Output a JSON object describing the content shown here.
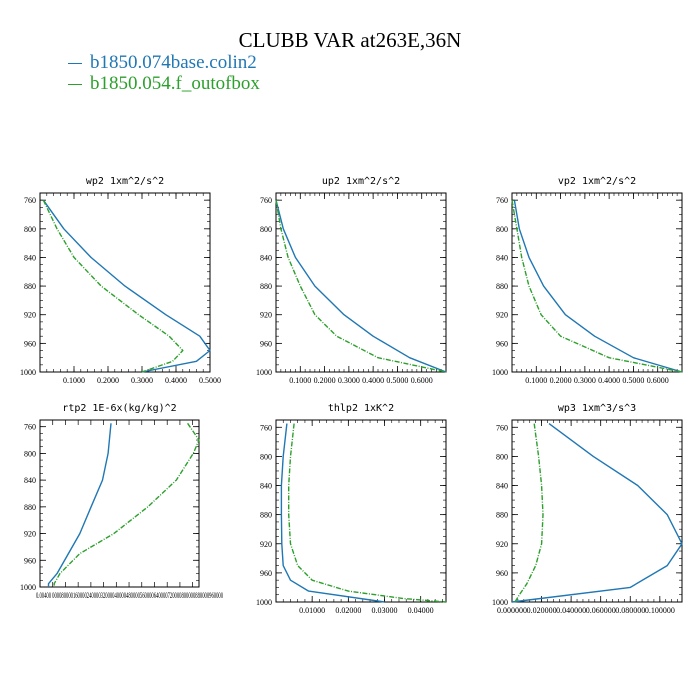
{
  "title": "CLUBB VAR at263E,36N",
  "legend": [
    {
      "label": "b1850.074base.colin2",
      "color": "#1f77b4"
    },
    {
      "label": "b1850.054.f_outofbox",
      "color": "#2ca02c"
    }
  ],
  "chart_data": [
    {
      "type": "line",
      "title": "wp2  1xm^2/s^2",
      "ylim": [
        1000,
        750
      ],
      "yticks": [
        "760",
        "800",
        "840",
        "880",
        "920",
        "960",
        "1000"
      ],
      "ytick_values": [
        760,
        800,
        840,
        880,
        920,
        960,
        1000
      ],
      "xlim": [
        0.0,
        0.5
      ],
      "xticks": [
        "0.1000",
        "0.2000",
        "0.3000",
        "0.4000",
        "0.5000"
      ],
      "xtick_values": [
        0.1,
        0.2,
        0.3,
        0.4,
        0.5
      ],
      "series": [
        {
          "name": "b1850.074base.colin2",
          "color": "#1f77b4",
          "dashed": false,
          "y": [
            760,
            800,
            840,
            880,
            920,
            950,
            970,
            985,
            1000
          ],
          "x": [
            0.01,
            0.07,
            0.15,
            0.25,
            0.37,
            0.47,
            0.5,
            0.46,
            0.3
          ]
        },
        {
          "name": "b1850.054.f_outofbox",
          "color": "#2ca02c",
          "dashed": true,
          "y": [
            760,
            800,
            840,
            880,
            920,
            950,
            970,
            985,
            1000
          ],
          "x": [
            0.01,
            0.05,
            0.1,
            0.18,
            0.29,
            0.38,
            0.42,
            0.39,
            0.3
          ]
        }
      ]
    },
    {
      "type": "line",
      "title": "up2  1xm^2/s^2",
      "ylim": [
        1000,
        750
      ],
      "yticks": [
        "760",
        "800",
        "840",
        "880",
        "920",
        "960",
        "1000"
      ],
      "ytick_values": [
        760,
        800,
        840,
        880,
        920,
        960,
        1000
      ],
      "xlim": [
        0.0,
        0.7
      ],
      "xticks": [
        "0.1000",
        "0.2000",
        "0.3000",
        "0.4000",
        "0.5000",
        "0.6000"
      ],
      "xtick_values": [
        0.1,
        0.2,
        0.3,
        0.4,
        0.5,
        0.6
      ],
      "series": [
        {
          "name": "b1850.074base.colin2",
          "color": "#1f77b4",
          "dashed": false,
          "y": [
            760,
            800,
            840,
            880,
            920,
            950,
            980,
            1000
          ],
          "x": [
            0.0,
            0.03,
            0.08,
            0.16,
            0.28,
            0.4,
            0.55,
            0.7
          ]
        },
        {
          "name": "b1850.054.f_outofbox",
          "color": "#2ca02c",
          "dashed": true,
          "y": [
            760,
            800,
            840,
            880,
            920,
            950,
            980,
            1000
          ],
          "x": [
            0.0,
            0.02,
            0.05,
            0.1,
            0.16,
            0.25,
            0.42,
            0.7
          ]
        }
      ]
    },
    {
      "type": "line",
      "title": "vp2  1xm^2/s^2",
      "ylim": [
        1000,
        750
      ],
      "yticks": [
        "760",
        "800",
        "840",
        "880",
        "920",
        "960",
        "1000"
      ],
      "ytick_values": [
        760,
        800,
        840,
        880,
        920,
        960,
        1000
      ],
      "xlim": [
        0.0,
        0.7
      ],
      "xticks": [
        "0.1000",
        "0.2000",
        "0.3000",
        "0.4000",
        "0.5000",
        "0.6000"
      ],
      "xtick_values": [
        0.1,
        0.2,
        0.3,
        0.4,
        0.5,
        0.6
      ],
      "series": [
        {
          "name": "b1850.074base.colin2",
          "color": "#1f77b4",
          "dashed": false,
          "y": [
            760,
            800,
            840,
            880,
            920,
            950,
            980,
            1000
          ],
          "x": [
            0.01,
            0.03,
            0.07,
            0.13,
            0.22,
            0.34,
            0.5,
            0.7
          ]
        },
        {
          "name": "b1850.054.f_outofbox",
          "color": "#2ca02c",
          "dashed": true,
          "y": [
            760,
            800,
            840,
            880,
            920,
            950,
            980,
            1000
          ],
          "x": [
            0.0,
            0.02,
            0.04,
            0.07,
            0.12,
            0.2,
            0.4,
            0.7
          ]
        }
      ]
    },
    {
      "type": "line",
      "title": "rtp2  1E-6x(kg/kg)^2",
      "ylim": [
        1000,
        750
      ],
      "yticks": [
        "760",
        "800",
        "840",
        "880",
        "920",
        "960",
        "1000"
      ],
      "ytick_values": [
        760,
        800,
        840,
        880,
        920,
        960,
        1000
      ],
      "xlim": [
        0.0,
        0.00028
      ],
      "xticks": [
        "0.00400",
        "0.000080",
        "0.000160",
        "0.000240",
        "0.000320",
        "0.000400",
        "0.000480",
        "0.000560",
        "0.000640",
        "0.000720",
        "0.000800",
        "0.000880",
        "0.000960"
      ],
      "xtick_values": [],
      "xtick_text": "0.00400 00008000016000024000032000040000480000560000640000720000800000880000960000",
      "series": [
        {
          "name": "b1850.074base.colin2",
          "color": "#1f77b4",
          "dashed": false,
          "y": [
            755,
            800,
            840,
            880,
            920,
            950,
            980,
            995,
            1000
          ],
          "x": [
            0.000125,
            0.00012,
            0.00011,
            9e-05,
            7e-05,
            5e-05,
            3e-05,
            1.5e-05,
            1.5e-05
          ]
        },
        {
          "name": "b1850.054.f_outofbox",
          "color": "#2ca02c",
          "dashed": true,
          "y": [
            755,
            780,
            800,
            840,
            880,
            920,
            950,
            980,
            995,
            1000
          ],
          "x": [
            0.00026,
            0.00028,
            0.00027,
            0.00024,
            0.00019,
            0.00013,
            7e-05,
            3.5e-05,
            2.5e-05,
            2.5e-05
          ]
        }
      ]
    },
    {
      "type": "line",
      "title": "thlp2  1xK^2",
      "ylim": [
        1000,
        750
      ],
      "yticks": [
        "760",
        "800",
        "840",
        "880",
        "920",
        "960",
        "1000"
      ],
      "ytick_values": [
        760,
        800,
        840,
        880,
        920,
        960,
        1000
      ],
      "xlim": [
        0.0,
        0.047
      ],
      "xticks": [
        "0.01000",
        "0.02000",
        "0.03000",
        "0.04000"
      ],
      "xtick_values": [
        0.01,
        0.02,
        0.03,
        0.04
      ],
      "series": [
        {
          "name": "b1850.074base.colin2",
          "color": "#1f77b4",
          "dashed": false,
          "y": [
            755,
            800,
            840,
            880,
            920,
            950,
            970,
            985,
            1000
          ],
          "x": [
            0.003,
            0.002,
            0.0015,
            0.0015,
            0.0016,
            0.002,
            0.004,
            0.009,
            0.03
          ]
        },
        {
          "name": "b1850.054.f_outofbox",
          "color": "#2ca02c",
          "dashed": true,
          "y": [
            755,
            800,
            840,
            880,
            920,
            950,
            970,
            985,
            995,
            1000
          ],
          "x": [
            0.005,
            0.004,
            0.0035,
            0.0035,
            0.004,
            0.006,
            0.01,
            0.02,
            0.035,
            0.047
          ]
        }
      ]
    },
    {
      "type": "line",
      "title": "wp3  1xm^3/s^3",
      "ylim": [
        1000,
        750
      ],
      "yticks": [
        "760",
        "800",
        "840",
        "880",
        "920",
        "960",
        "1000"
      ],
      "ytick_values": [
        760,
        800,
        840,
        880,
        920,
        960,
        1000
      ],
      "xlim": [
        0.0,
        0.115
      ],
      "xticks": [
        "0.000000",
        "0.020000",
        "0.040000",
        "0.060000",
        "0.080000",
        "0.100000"
      ],
      "xtick_values": [
        0.0,
        0.02,
        0.04,
        0.06,
        0.08,
        0.1
      ],
      "series": [
        {
          "name": "b1850.074base.colin2",
          "color": "#1f77b4",
          "dashed": false,
          "y": [
            755,
            800,
            840,
            880,
            920,
            950,
            980,
            1000
          ],
          "x": [
            0.025,
            0.055,
            0.085,
            0.105,
            0.115,
            0.105,
            0.08,
            0.0
          ]
        },
        {
          "name": "b1850.054.f_outofbox",
          "color": "#2ca02c",
          "dashed": true,
          "y": [
            755,
            800,
            840,
            880,
            920,
            950,
            975,
            990,
            1000
          ],
          "x": [
            0.015,
            0.018,
            0.02,
            0.021,
            0.02,
            0.016,
            0.01,
            0.005,
            0.002
          ]
        }
      ]
    }
  ]
}
